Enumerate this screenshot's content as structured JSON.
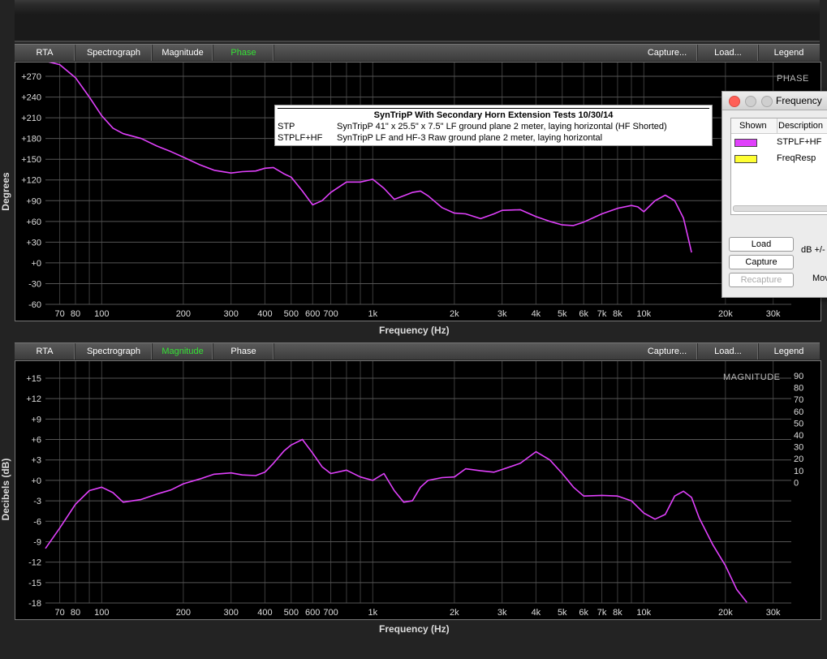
{
  "tabs": [
    "RTA",
    "Spectrograph",
    "Magnitude",
    "Phase",
    "Capture...",
    "Load...",
    "Legend"
  ],
  "phase_panel": {
    "active_tab": "Phase",
    "corner_label": "PHASE",
    "ylabel": "Degrees",
    "xlabel": "Frequency (Hz)",
    "yticks": [
      "+270",
      "+240",
      "+210",
      "+180",
      "+150",
      "+120",
      "+90",
      "+60",
      "+30",
      "+0",
      "-30",
      "-60"
    ]
  },
  "magnitude_panel": {
    "active_tab": "Magnitude",
    "corner_label": "MAGNITUDE",
    "ylabel": "Decibels (dB)",
    "xlabel": "Frequency (Hz)",
    "yticks": [
      "+15",
      "+12",
      "+9",
      "+6",
      "+3",
      "+0",
      "-3",
      "-6",
      "-9",
      "-12",
      "-15",
      "-18"
    ],
    "yticks_right": [
      "90",
      "80",
      "70",
      "60",
      "50",
      "40",
      "30",
      "20",
      "10",
      "0"
    ]
  },
  "xticks": [
    "70",
    "80",
    "100",
    "200",
    "300",
    "400",
    "500",
    "600",
    "700",
    "1k",
    "2k",
    "3k",
    "4k",
    "5k",
    "6k",
    "7k",
    "8k",
    "10k",
    "20k",
    "30k"
  ],
  "xtick_values": [
    70,
    80,
    100,
    200,
    300,
    400,
    500,
    600,
    700,
    1000,
    2000,
    3000,
    4000,
    5000,
    6000,
    7000,
    8000,
    10000,
    20000,
    30000
  ],
  "title_box": {
    "title": "SynTripP With Secondary Horn Extension Tests 10/30/14",
    "rows": [
      {
        "name": "STP",
        "desc": "SynTripP 41\" x 25.5\" x 7.5\"  LF ground plane 2 meter, laying horizontal (HF Shorted)"
      },
      {
        "name": "STPLF+HF",
        "desc": "SynTripP LF and HF-3  Raw ground plane 2 meter, laying horizontal"
      }
    ]
  },
  "legend_window": {
    "title": "Frequency",
    "col_shown": "Shown",
    "col_desc": "Description",
    "items": [
      {
        "name": "STPLF+HF",
        "color": "#e040fb"
      },
      {
        "name": "FreqResp",
        "color": "#ffff33"
      }
    ],
    "buttons": {
      "load": "Load",
      "capture": "Capture",
      "recapture": "Recapture"
    },
    "db_label": "dB +/-",
    "mov_label": "Mov"
  },
  "chart_data": [
    {
      "type": "line",
      "title": "",
      "xlabel": "Frequency (Hz)",
      "ylabel": "Degrees",
      "xscale": "log",
      "xlim": [
        62,
        35000
      ],
      "ylim": [
        -60,
        285
      ],
      "grid": true,
      "series": [
        {
          "name": "STPLF+HF",
          "color": "#e040fb",
          "x": [
            62,
            70,
            80,
            90,
            100,
            110,
            120,
            140,
            160,
            180,
            200,
            230,
            260,
            300,
            330,
            370,
            400,
            430,
            470,
            500,
            550,
            600,
            650,
            700,
            800,
            900,
            1000,
            1100,
            1200,
            1300,
            1400,
            1500,
            1600,
            1800,
            2000,
            2200,
            2500,
            2800,
            3000,
            3500,
            4000,
            4500,
            5000,
            5500,
            6000,
            7000,
            8000,
            9000,
            9500,
            10000,
            11000,
            12000,
            13000,
            14000,
            14500,
            15000
          ],
          "y": [
            292,
            287,
            268,
            240,
            213,
            195,
            187,
            180,
            169,
            161,
            153,
            142,
            134,
            130,
            132,
            133,
            137,
            138,
            129,
            124,
            104,
            84,
            90,
            102,
            117,
            117,
            121,
            108,
            92,
            97,
            102,
            104,
            97,
            80,
            72,
            71,
            64,
            71,
            76,
            77,
            67,
            60,
            55,
            54,
            59,
            71,
            79,
            83,
            81,
            74,
            90,
            98,
            90,
            65,
            40,
            15
          ]
        }
      ]
    },
    {
      "type": "line",
      "title": "",
      "xlabel": "Frequency (Hz)",
      "ylabel": "Decibels (dB)",
      "xscale": "log",
      "xlim": [
        62,
        35000
      ],
      "ylim": [
        -18,
        17
      ],
      "grid": true,
      "series": [
        {
          "name": "STPLF+HF",
          "color": "#e040fb",
          "x": [
            62,
            70,
            80,
            90,
            100,
            110,
            120,
            140,
            160,
            180,
            200,
            230,
            260,
            300,
            330,
            370,
            400,
            430,
            470,
            500,
            550,
            600,
            650,
            700,
            800,
            900,
            1000,
            1100,
            1200,
            1300,
            1400,
            1500,
            1600,
            1800,
            2000,
            2200,
            2500,
            2800,
            3000,
            3500,
            4000,
            4500,
            5000,
            5500,
            6000,
            7000,
            8000,
            9000,
            10000,
            11000,
            12000,
            13000,
            14000,
            15000,
            16000,
            18000,
            20000,
            22000,
            24000
          ],
          "y": [
            -10,
            -7,
            -3.5,
            -1.5,
            -1,
            -1.8,
            -3.2,
            -2.8,
            -2,
            -1.4,
            -0.5,
            0.2,
            0.9,
            1.1,
            0.8,
            0.7,
            1.2,
            2.5,
            4.3,
            5.2,
            6,
            4,
            2,
            1,
            1.5,
            0.5,
            0,
            1,
            -1.5,
            -3.2,
            -3,
            -1,
            0,
            0.4,
            0.5,
            1.7,
            1.4,
            1.2,
            1.6,
            2.5,
            4.2,
            3,
            1,
            -1,
            -2.3,
            -2.2,
            -2.3,
            -3,
            -4.8,
            -5.7,
            -5,
            -2.3,
            -1.6,
            -2.5,
            -5.5,
            -9.5,
            -12.5,
            -16,
            -17.9
          ]
        }
      ]
    }
  ]
}
